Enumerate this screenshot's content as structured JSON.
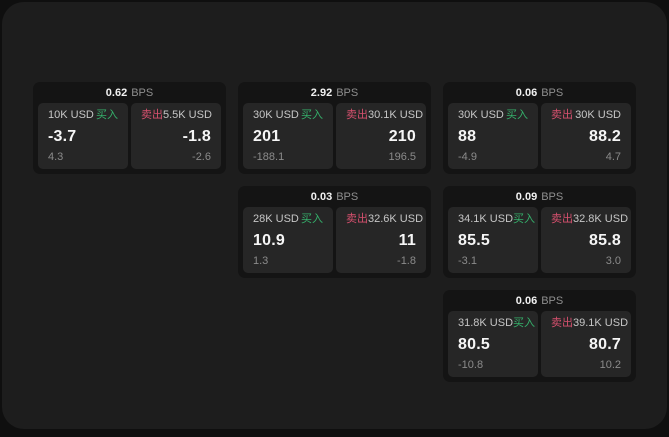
{
  "labels": {
    "bps_unit": "BPS",
    "buy": "买入",
    "sell": "卖出"
  },
  "colors": {
    "buy_accent": "#35b06b",
    "sell_accent": "#d6506e",
    "panel_bg": "#1d1d1d",
    "card_bg": "#141414",
    "tile_bg": "#262626"
  },
  "cards": [
    {
      "spread_bps": "0.62",
      "buy": {
        "size": "10K USD",
        "price": "-3.7",
        "sub_value": "4.3"
      },
      "sell": {
        "size": "5.5K USD",
        "price": "-1.8",
        "sub_value": "-2.6"
      }
    },
    {
      "spread_bps": "2.92",
      "buy": {
        "size": "30K USD",
        "price": "201",
        "sub_value": "-188.1"
      },
      "sell": {
        "size": "30.1K USD",
        "price": "210",
        "sub_value": "196.5"
      }
    },
    {
      "spread_bps": "0.06",
      "buy": {
        "size": "30K USD",
        "price": "88",
        "sub_value": "-4.9"
      },
      "sell": {
        "size": "30K USD",
        "price": "88.2",
        "sub_value": "4.7"
      }
    },
    {
      "spread_bps": "0.03",
      "buy": {
        "size": "28K USD",
        "price": "10.9",
        "sub_value": "1.3"
      },
      "sell": {
        "size": "32.6K USD",
        "price": "11",
        "sub_value": "-1.8"
      }
    },
    {
      "spread_bps": "0.09",
      "buy": {
        "size": "34.1K USD",
        "price": "85.5",
        "sub_value": "-3.1"
      },
      "sell": {
        "size": "32.8K USD",
        "price": "85.8",
        "sub_value": "3.0"
      }
    },
    {
      "spread_bps": "0.06",
      "buy": {
        "size": "31.8K USD",
        "price": "80.5",
        "sub_value": "-10.8"
      },
      "sell": {
        "size": "39.1K USD",
        "price": "80.7",
        "sub_value": "10.2"
      }
    }
  ]
}
